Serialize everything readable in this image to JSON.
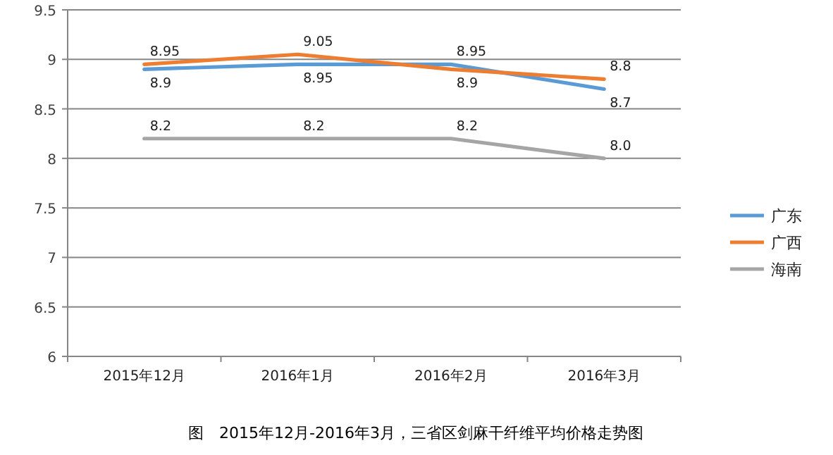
{
  "chart_data": {
    "type": "line",
    "annotations": [
      "图　2015年12月-2016年3月，三省区剑麻干纤维平均价格走势图"
    ],
    "categories": [
      "2015年12月",
      "2016年1月",
      "2016年2月",
      "2016年3月"
    ],
    "series": [
      {
        "name": "广东",
        "color": "#5b9bd5",
        "values": [
          8.9,
          8.95,
          8.95,
          8.7
        ],
        "value_labels": [
          "8.9",
          "8.95",
          "8.95",
          "8.7"
        ]
      },
      {
        "name": "广西",
        "color": "#ed7d31",
        "values": [
          8.95,
          9.05,
          8.9,
          8.8
        ],
        "value_labels": [
          "8.95",
          "9.05",
          "8.9",
          "8.8"
        ]
      },
      {
        "name": "海南",
        "color": "#a5a5a5",
        "values": [
          8.2,
          8.2,
          8.2,
          8.0
        ],
        "value_labels": [
          "8.2",
          "8.2",
          "8.2",
          "8.0"
        ]
      }
    ],
    "ylim": [
      6,
      9.5
    ],
    "yticks": [
      6,
      6.5,
      7,
      7.5,
      8,
      8.5,
      9,
      9.5
    ],
    "grid": "y",
    "legend": "right",
    "marker": "none",
    "line_style": "solid"
  }
}
